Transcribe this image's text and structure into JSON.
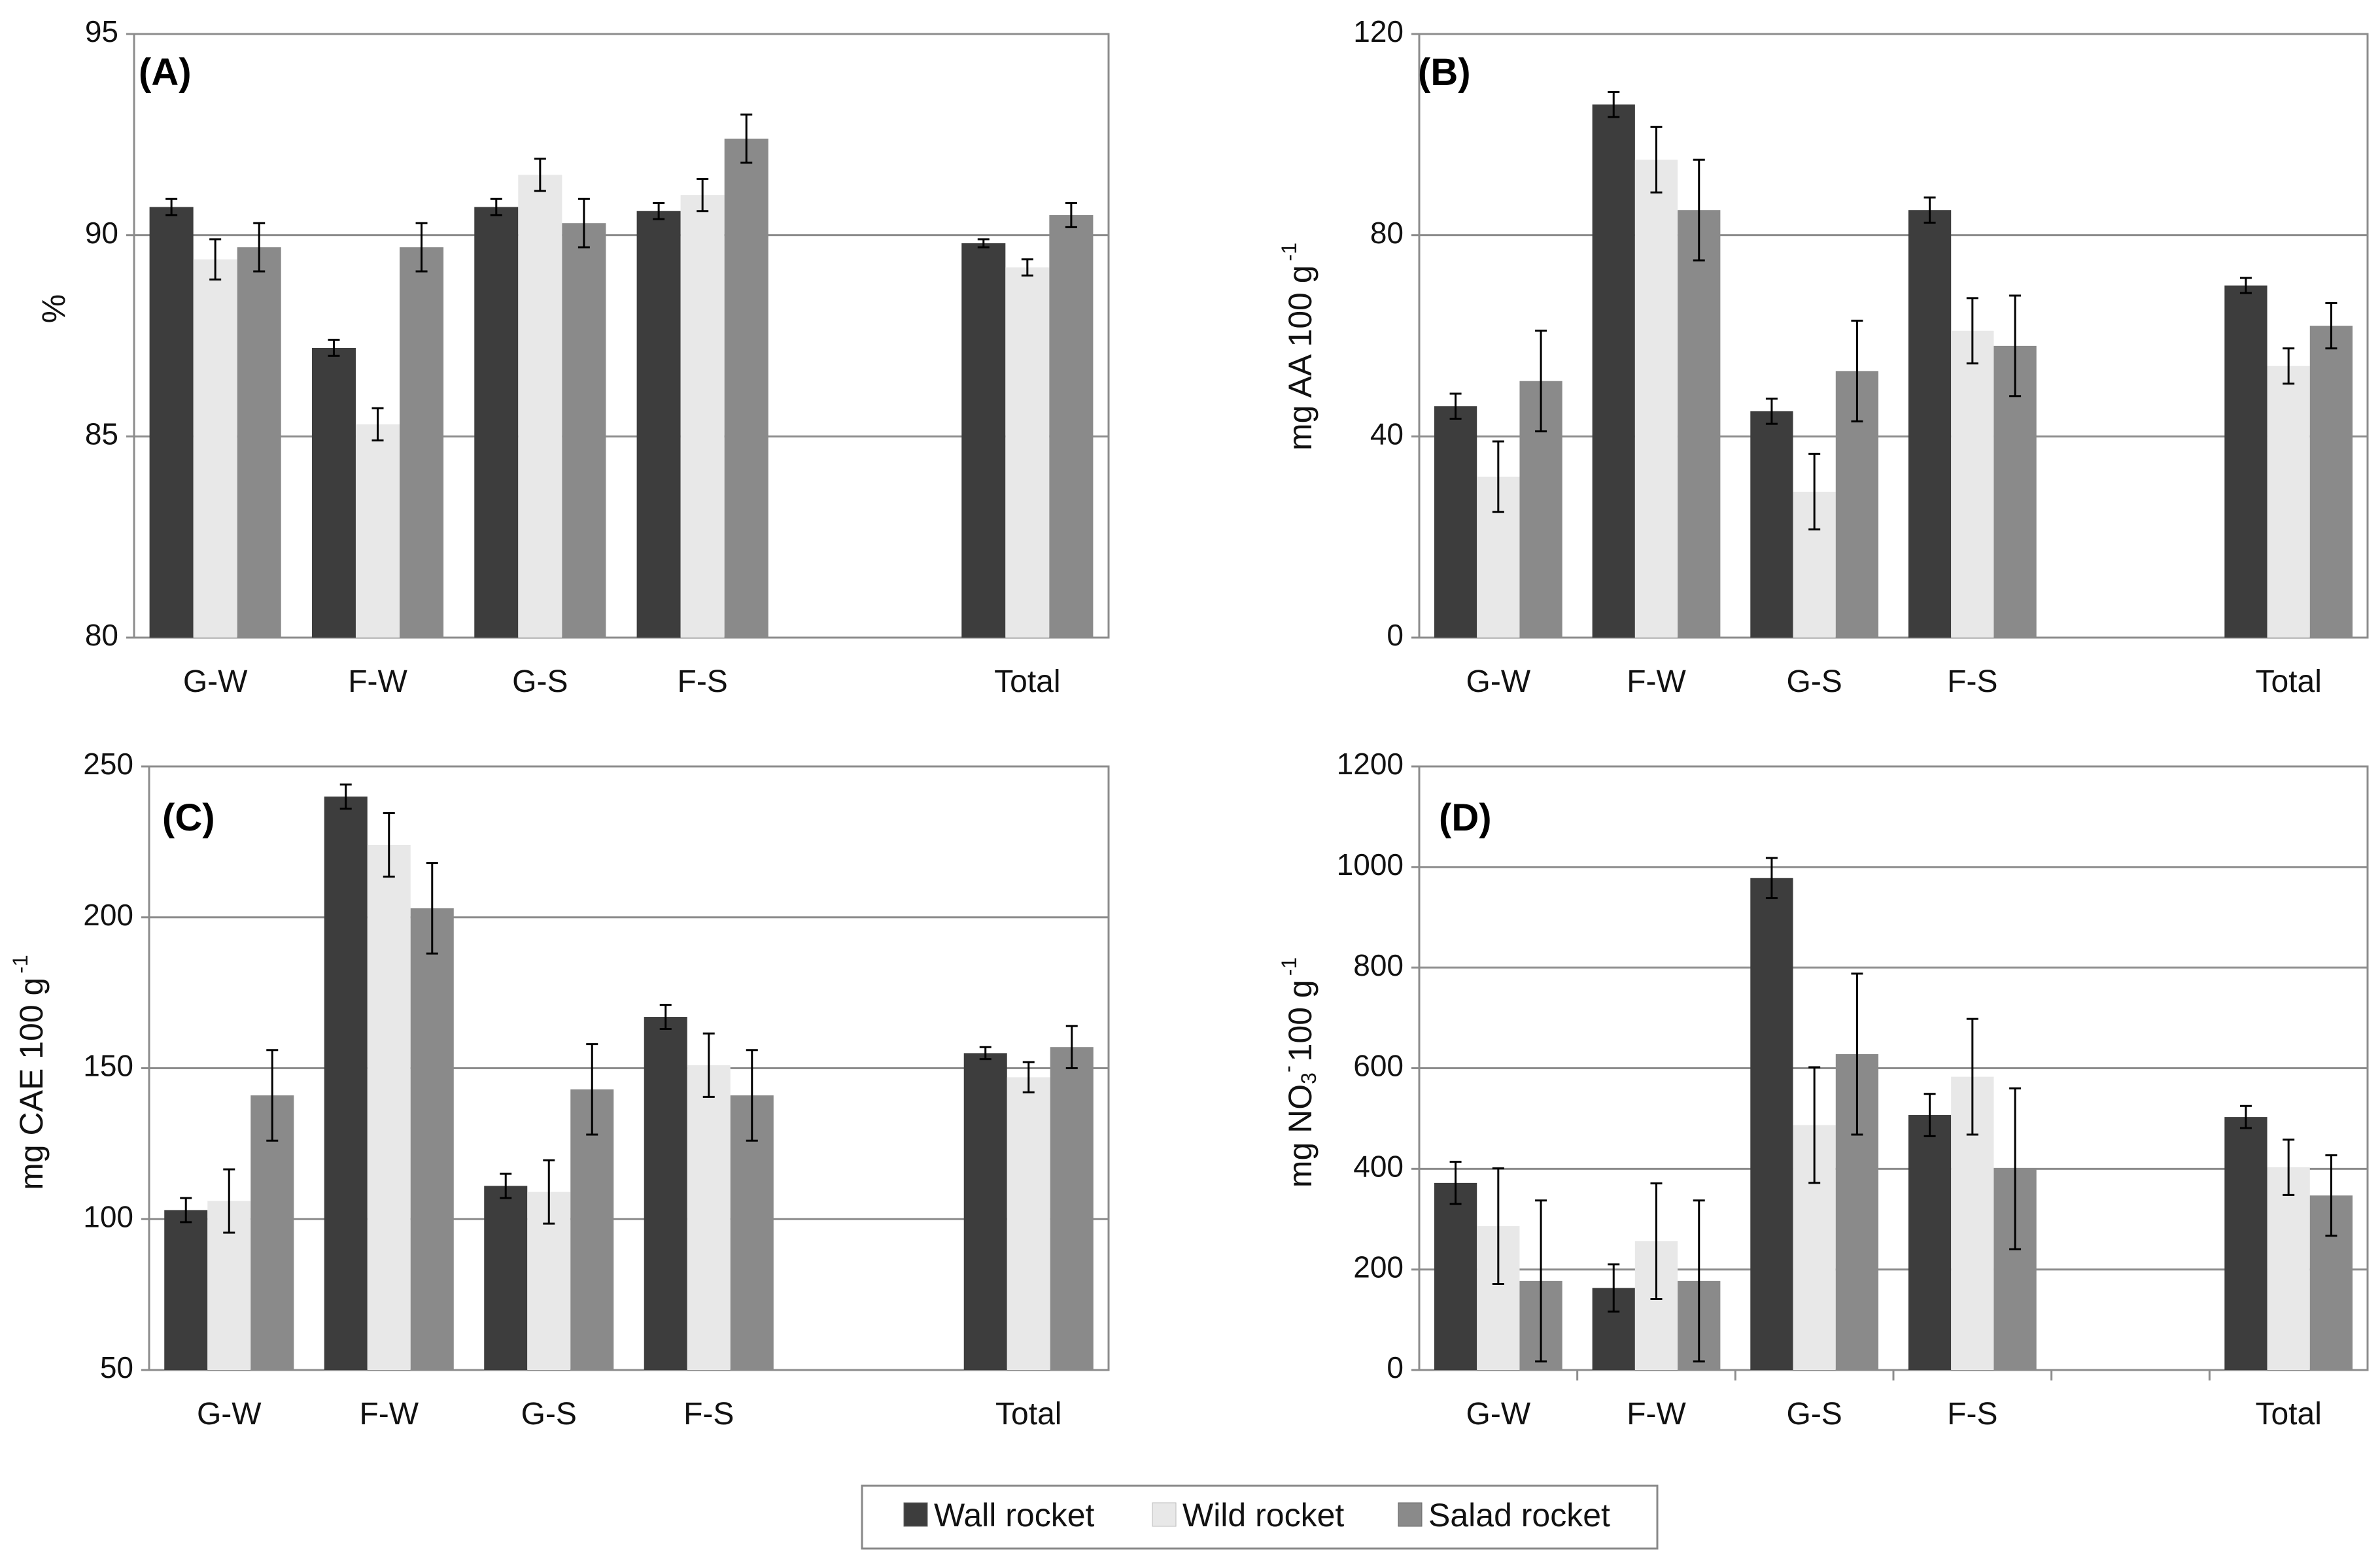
{
  "legend": {
    "series": [
      {
        "name": "Wall rocket",
        "color": "#3d3d3d"
      },
      {
        "name": "Wild rocket",
        "color": "#e8e8e8"
      },
      {
        "name": "Salad rocket",
        "color": "#8a8a8a"
      }
    ]
  },
  "chart_data": [
    {
      "type": "bar",
      "panel": "(A)",
      "title": "",
      "ylabel": "%",
      "xlabel": "",
      "ylim": [
        80,
        95
      ],
      "yticks": [
        80,
        85,
        90,
        95
      ],
      "grid": true,
      "categories": [
        "G-W",
        "F-W",
        "G-S",
        "F-S",
        "",
        "Total"
      ],
      "series": [
        {
          "name": "Wall rocket",
          "values": [
            90.7,
            87.2,
            90.7,
            90.6,
            null,
            89.8
          ],
          "errors": [
            0.2,
            0.2,
            0.2,
            0.2,
            null,
            0.1
          ]
        },
        {
          "name": "Wild rocket",
          "values": [
            89.4,
            85.3,
            91.5,
            91.0,
            null,
            89.2
          ],
          "errors": [
            0.5,
            0.4,
            0.4,
            0.4,
            null,
            0.2
          ]
        },
        {
          "name": "Salad rocket",
          "values": [
            89.7,
            89.7,
            90.3,
            92.4,
            null,
            90.5
          ],
          "errors": [
            0.6,
            0.6,
            0.6,
            0.6,
            null,
            0.3
          ]
        }
      ]
    },
    {
      "type": "bar",
      "panel": "(B)",
      "title": "",
      "ylabel": "mg AA 100 g",
      "ylabel_sup": "-1",
      "xlabel": "",
      "ylim": [
        0,
        120
      ],
      "yticks": [
        0,
        40,
        80,
        120
      ],
      "grid": true,
      "categories": [
        "G-W",
        "F-W",
        "G-S",
        "F-S",
        "",
        "Total"
      ],
      "series": [
        {
          "name": "Wall rocket",
          "values": [
            46,
            106,
            45,
            85,
            null,
            70
          ],
          "errors": [
            2.5,
            2.5,
            2.5,
            2.5,
            null,
            1.5
          ]
        },
        {
          "name": "Wild rocket",
          "values": [
            32,
            95,
            29,
            61,
            null,
            54
          ],
          "errors": [
            7,
            6.5,
            7.5,
            6.5,
            null,
            3.5
          ]
        },
        {
          "name": "Salad rocket",
          "values": [
            51,
            85,
            53,
            58,
            null,
            62
          ],
          "errors": [
            10,
            10,
            10,
            10,
            null,
            4.5
          ]
        }
      ]
    },
    {
      "type": "bar",
      "panel": "(C)",
      "title": "",
      "ylabel": "mg CAE 100 g",
      "ylabel_sup": "-1",
      "xlabel": "",
      "ylim": [
        50,
        250
      ],
      "yticks": [
        50,
        100,
        150,
        200,
        250
      ],
      "grid": true,
      "categories": [
        "G-W",
        "F-W",
        "G-S",
        "F-S",
        "",
        "Total"
      ],
      "series": [
        {
          "name": "Wall rocket",
          "values": [
            103,
            240,
            111,
            167,
            null,
            155
          ],
          "errors": [
            4,
            4,
            4,
            4,
            null,
            2
          ]
        },
        {
          "name": "Wild rocket",
          "values": [
            106,
            224,
            109,
            151,
            null,
            147
          ],
          "errors": [
            10.5,
            10.5,
            10.5,
            10.5,
            null,
            5
          ]
        },
        {
          "name": "Salad rocket",
          "values": [
            141,
            203,
            143,
            141,
            null,
            157
          ],
          "errors": [
            15,
            15,
            15,
            15,
            null,
            7
          ]
        }
      ]
    },
    {
      "type": "bar",
      "panel": "(D)",
      "title": "",
      "ylabel": "mg NO",
      "ylabel_sub": "3",
      "ylabel_sup": "-",
      "ylabel_rest": "100 g",
      "ylabel_rest_sup": "-1",
      "xlabel": "",
      "ylim": [
        0,
        1200
      ],
      "yticks": [
        0,
        200,
        400,
        600,
        800,
        1000,
        1200
      ],
      "grid": true,
      "separators": true,
      "categories": [
        "G-W",
        "F-W",
        "G-S",
        "F-S",
        "",
        "Total"
      ],
      "series": [
        {
          "name": "Wall rocket",
          "values": [
            372,
            163,
            978,
            507,
            null,
            503
          ],
          "errors": [
            42,
            47,
            40,
            42,
            null,
            22
          ]
        },
        {
          "name": "Wild rocket",
          "values": [
            286,
            256,
            487,
            583,
            null,
            403
          ],
          "errors": [
            115,
            115,
            115,
            115,
            null,
            55
          ]
        },
        {
          "name": "Salad rocket",
          "values": [
            177,
            177,
            628,
            400,
            null,
            347
          ],
          "errors": [
            160,
            160,
            160,
            160,
            null,
            80
          ]
        }
      ]
    }
  ]
}
